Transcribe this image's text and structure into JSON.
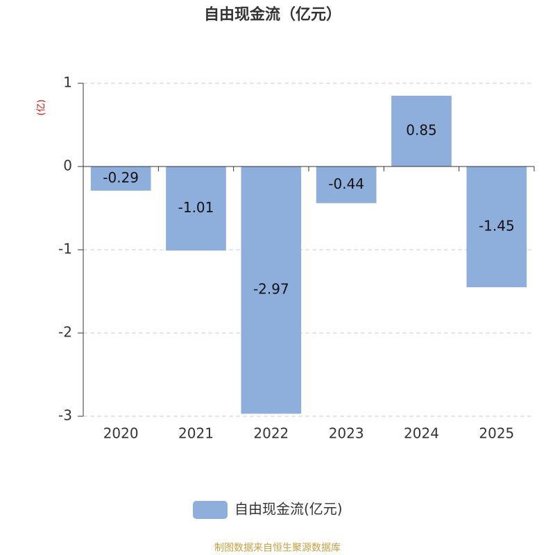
{
  "chart_data": {
    "type": "bar",
    "title": "自由现金流（亿元）",
    "y_label": "(亿)",
    "categories": [
      "2020",
      "2021",
      "2022",
      "2023",
      "2024",
      "2025"
    ],
    "series": [
      {
        "name": "自由现金流(亿元)",
        "color": "#8eaedc",
        "values": [
          -0.29,
          -1.01,
          -2.97,
          -0.44,
          0.85,
          -1.45
        ]
      }
    ],
    "ylim": [
      -3,
      1
    ],
    "yticks": [
      -3,
      -2,
      -1,
      0,
      1
    ],
    "grid": true,
    "source": "制图数据来自恒生聚源数据库"
  }
}
